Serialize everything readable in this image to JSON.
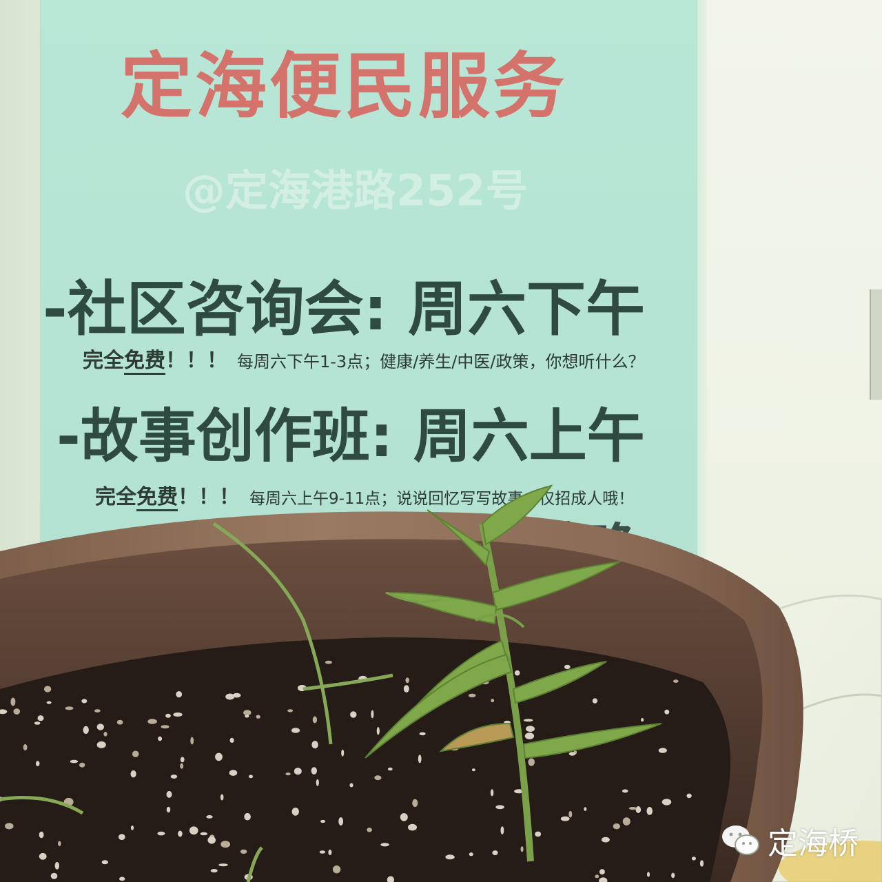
{
  "poster": {
    "title": "定海便民服务",
    "address": "@定海港路252号",
    "section1": {
      "heading": "-社区咨询会: 周六下午",
      "lead": "完全",
      "free": "免费",
      "exclaim": "！！！",
      "detail": "每周六下午1-3点；健康/养生/中医/政策，你想听什么？"
    },
    "section2": {
      "heading": "-故事创作班: 周六上午",
      "lead": "完全",
      "free": "免费",
      "exclaim": "！！！",
      "detail": "每周六上午9-11点；说说回忆写写故事；仅招成人哦！"
    },
    "section3_partial": "五傍晚"
  },
  "watermark": {
    "icon": "wechat-icon",
    "text": "定海桥"
  },
  "colors": {
    "poster_bg": "#b8e6d5",
    "title": "#d4736b",
    "heading": "#2f4a40",
    "pot": "#8c6a52",
    "soil": "#2a1f1b",
    "plant": "#7fa84a"
  }
}
